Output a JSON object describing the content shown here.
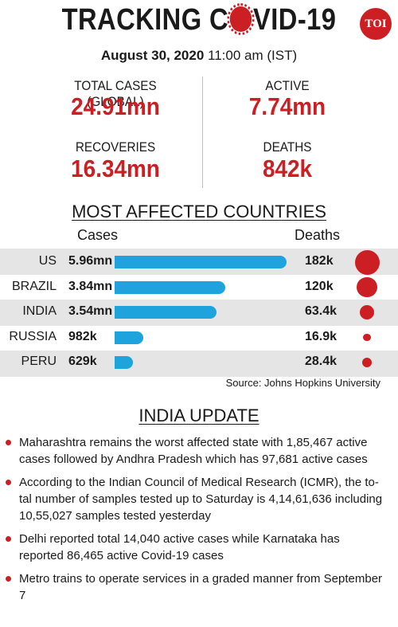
{
  "header": {
    "title_before": "TRACKING C",
    "title_after": "VID-19",
    "logo_text": "TOI",
    "date": "August 30, 2020",
    "time": "11:00 am (IST)"
  },
  "stats": [
    {
      "label": "TOTAL CASES (GLOBAL)",
      "value": "24.91mn"
    },
    {
      "label": "ACTIVE",
      "value": "7.74mn"
    },
    {
      "label": "RECOVERIES",
      "value": "16.34mn"
    },
    {
      "label": "DEATHS",
      "value": "842k"
    }
  ],
  "chart_data": {
    "type": "bar",
    "title": "MOST AFFECTED COUNTRIES",
    "cases_header": "Cases",
    "deaths_header": "Deaths",
    "categories": [
      "US",
      "BRAZIL",
      "INDIA",
      "RUSSIA",
      "PERU"
    ],
    "series": [
      {
        "name": "Cases",
        "values": [
          5.96,
          3.84,
          3.54,
          0.982,
          0.629
        ],
        "unit": "mn",
        "labels": [
          "5.96mn",
          "3.84mn",
          "3.54mn",
          "982k",
          "629k"
        ]
      },
      {
        "name": "Deaths",
        "values": [
          182,
          120,
          63.4,
          16.9,
          28.4
        ],
        "unit": "k",
        "labels": [
          "182k",
          "120k",
          "63.4k",
          "16.9k",
          "28.4k"
        ]
      }
    ],
    "source": "Source: Johns Hopkins University",
    "colors": {
      "bar": "#1fa3dc",
      "dot": "#cc1f24",
      "band": "#e5e5e5"
    }
  },
  "india_update": {
    "title": "INDIA UPDATE",
    "items": [
      "Maharashtra remains the worst affected state with 1,85,467 active cases followed by Andhra Pradesh which has 97,681 active cases",
      "According to the Indian Council of Medical Research (ICMR), the to-tal number of samples tested up to Saturday is 4,14,61,636 including 10,55,027 samples tested yesterday",
      "Delhi reported total 14,040 active cases while Karnataka has reported 86,465 active Covid-19 cases",
      "Metro trains to operate services in a graded manner from September 7"
    ]
  },
  "colors": {
    "accent": "#cc1f24",
    "bar": "#1fa3dc",
    "text": "#1a1a1a"
  }
}
